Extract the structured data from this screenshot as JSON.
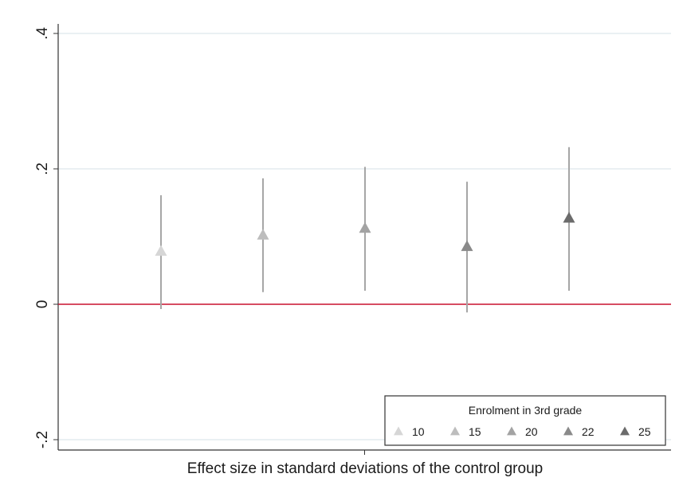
{
  "chart_data": {
    "type": "scatter",
    "xlabel": "Effect size in standard deviations of the control group",
    "ylabel": "",
    "ylim": [
      -0.22,
      0.4
    ],
    "y_ticks": [
      {
        "value": -0.2,
        "label": "-.2"
      },
      {
        "value": 0,
        "label": "0"
      },
      {
        "value": 0.2,
        "label": ".2"
      },
      {
        "value": 0.4,
        "label": ".4"
      }
    ],
    "grid": true,
    "reference_line": {
      "y": 0,
      "color": "#c8102e"
    },
    "legend": {
      "title": "Enrolment in 3rd grade",
      "position": "bottom-right"
    },
    "series": [
      {
        "name": "10",
        "estimate": 0.078,
        "ci": [
          -0.007,
          0.161
        ],
        "color": "#d6d6d6"
      },
      {
        "name": "15",
        "estimate": 0.102,
        "ci": [
          0.018,
          0.186
        ],
        "color": "#bdbdbd"
      },
      {
        "name": "20",
        "estimate": 0.112,
        "ci": [
          0.02,
          0.203
        ],
        "color": "#a3a3a3"
      },
      {
        "name": "22",
        "estimate": 0.085,
        "ci": [
          -0.012,
          0.181
        ],
        "color": "#8a8a8a"
      },
      {
        "name": "25",
        "estimate": 0.127,
        "ci": [
          0.02,
          0.232
        ],
        "color": "#6b6b6b"
      }
    ]
  }
}
